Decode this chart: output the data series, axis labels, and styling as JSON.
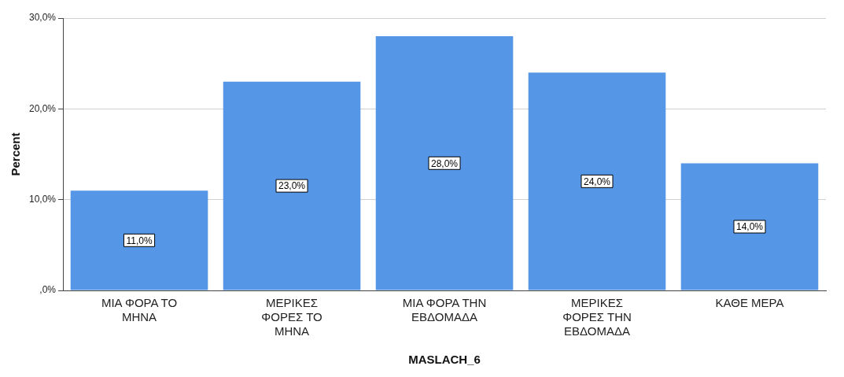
{
  "chart_data": {
    "type": "bar",
    "xlabel": "MASLACH_6",
    "ylabel": "Percent",
    "categories": [
      "ΜΙΑ ΦΟΡΑ ΤΟ ΜΗΝΑ",
      "ΜΕΡΙΚΕΣ ΦΟΡΕΣ ΤΟ ΜΗΝΑ",
      "ΜΙΑ ΦΟΡΑ ΤΗΝ ΕΒΔΟΜΑΔΑ",
      "ΜΕΡΙΚΕΣ ΦΟΡΕΣ ΤΗΝ ΕΒΔΟΜΑΔΑ",
      "ΚΑΘΕ ΜΕΡΑ"
    ],
    "values": [
      11,
      23,
      28,
      24,
      14
    ],
    "value_labels": [
      "11,0%",
      "23,0%",
      "28,0%",
      "24,0%",
      "14,0%"
    ],
    "color": "#5596e6",
    "ylim": [
      0,
      30
    ],
    "yticks": [
      {
        "value": 0,
        "label": ",0%"
      },
      {
        "value": 10,
        "label": "10,0%"
      },
      {
        "value": 20,
        "label": "20,0%"
      },
      {
        "value": 30,
        "label": "30,0%"
      }
    ],
    "grid": "y",
    "legend": false
  }
}
